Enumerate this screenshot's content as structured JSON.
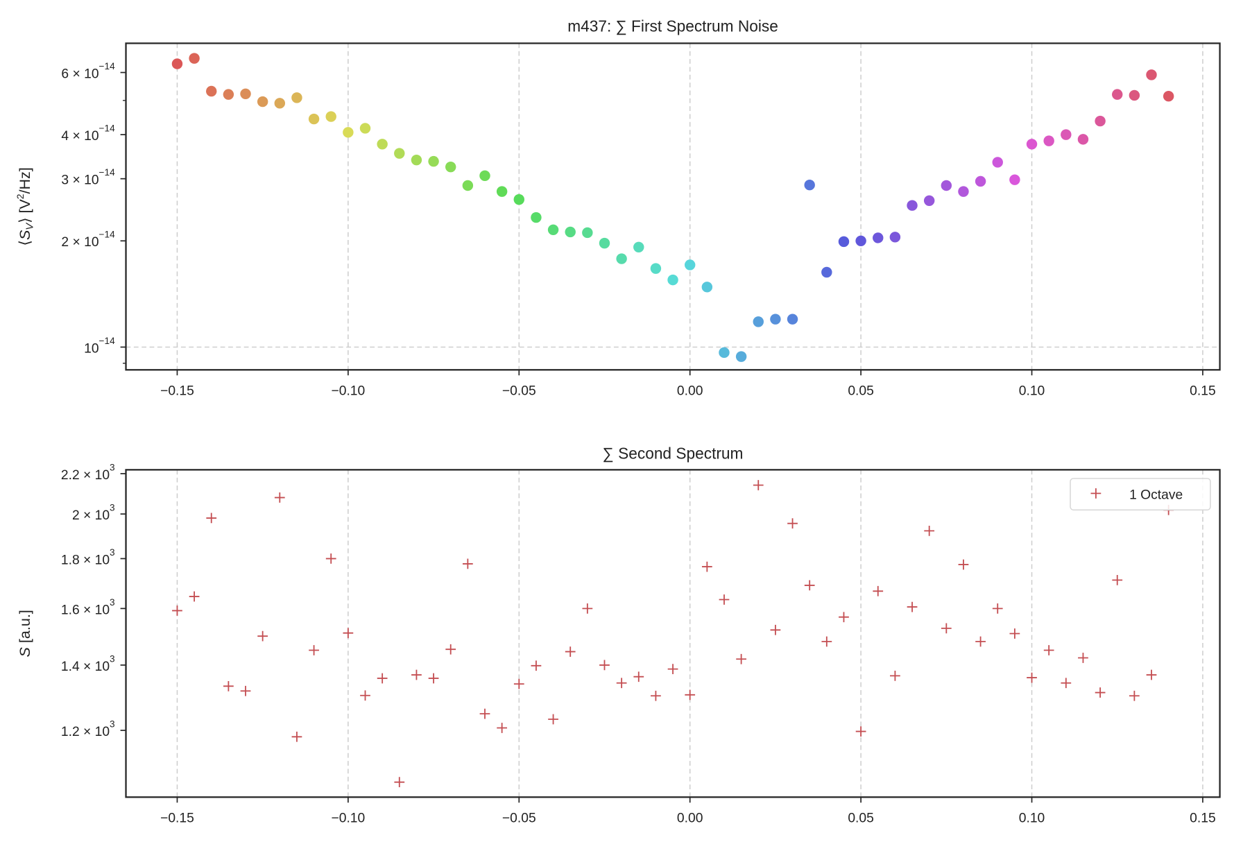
{
  "chart_data": [
    {
      "type": "scatter",
      "title": "m437: ∑ First Spectrum Noise",
      "xlabel": "",
      "ylabel": "⟨S_V⟩ [V²/Hz]",
      "yscale": "log",
      "xlim": [
        -0.165,
        0.155
      ],
      "ylim": [
        8.62e-15,
        7.26e-14
      ],
      "grid": "dashed, major x ticks and y=1e-14",
      "marker": "circle",
      "palette": "hls rainbow by point index (lightness 0.6, saturation 0.65)",
      "x_ticks": [
        {
          "value": -0.15,
          "label": "−0.15"
        },
        {
          "value": -0.1,
          "label": "−0.10"
        },
        {
          "value": -0.05,
          "label": "−0.05"
        },
        {
          "value": 0.0,
          "label": "0.00"
        },
        {
          "value": 0.05,
          "label": "0.05"
        },
        {
          "value": 0.1,
          "label": "0.10"
        },
        {
          "value": 0.15,
          "label": "0.15"
        }
      ],
      "y_ticks": [
        {
          "value": 6e-14,
          "mantissa": "6 × 10",
          "exponent": "−14"
        },
        {
          "value": 4e-14,
          "mantissa": "4 × 10",
          "exponent": "−14"
        },
        {
          "value": 3e-14,
          "mantissa": "3 × 10",
          "exponent": "−14"
        },
        {
          "value": 2e-14,
          "mantissa": "2 × 10",
          "exponent": "−14"
        },
        {
          "value": 1e-14,
          "mantissa": "10",
          "exponent": "−14"
        }
      ],
      "y_minor_ticks": [
        5e-14,
        9e-15
      ],
      "x": [
        -0.15,
        -0.145,
        -0.14,
        -0.135,
        -0.13,
        -0.125,
        -0.12,
        -0.115,
        -0.11,
        -0.105,
        -0.1,
        -0.095,
        -0.09,
        -0.085,
        -0.08,
        -0.075,
        -0.07,
        -0.065,
        -0.06,
        -0.055,
        -0.05,
        -0.045,
        -0.04,
        -0.035,
        -0.03,
        -0.025,
        -0.02,
        -0.015,
        -0.01,
        -0.005,
        0.0,
        0.005,
        0.01,
        0.015,
        0.02,
        0.025,
        0.03,
        0.035,
        0.04,
        0.045,
        0.05,
        0.055,
        0.06,
        0.065,
        0.07,
        0.075,
        0.08,
        0.085,
        0.09,
        0.095,
        0.1,
        0.105,
        0.11,
        0.115,
        0.12,
        0.125,
        0.13,
        0.135,
        0.14
      ],
      "y": [
        6.35e-14,
        6.58e-14,
        5.31e-14,
        5.2e-14,
        5.22e-14,
        4.96e-14,
        4.91e-14,
        5.09e-14,
        4.43e-14,
        4.5e-14,
        4.06e-14,
        4.17e-14,
        3.76e-14,
        3.54e-14,
        3.39e-14,
        3.36e-14,
        3.24e-14,
        2.87e-14,
        3.06e-14,
        2.76e-14,
        2.62e-14,
        2.33e-14,
        2.15e-14,
        2.12e-14,
        2.11e-14,
        1.97e-14,
        1.78e-14,
        1.92e-14,
        1.67e-14,
        1.55e-14,
        1.71e-14,
        1.48e-14,
        9.65e-15,
        9.4e-15,
        1.18e-14,
        1.2e-14,
        1.2e-14,
        2.88e-14,
        1.63e-14,
        1.99e-14,
        2e-14,
        2.04e-14,
        2.05e-14,
        2.52e-14,
        2.6e-14,
        2.87e-14,
        2.76e-14,
        2.95e-14,
        3.34e-14,
        2.98e-14,
        3.76e-14,
        3.84e-14,
        4e-14,
        3.88e-14,
        4.37e-14,
        5.2e-14,
        5.17e-14,
        5.91e-14,
        5.14e-14
      ]
    },
    {
      "type": "scatter",
      "title": "∑ Second Spectrum",
      "xlabel": "",
      "ylabel": "S [a.u.]",
      "yscale": "log",
      "xlim": [
        -0.165,
        0.155
      ],
      "ylim": [
        1025,
        2220
      ],
      "grid": "dashed, major x ticks",
      "marker": "plus",
      "color": "#c44e52",
      "legend": {
        "placement": "top-right",
        "entries": [
          "1 Octave"
        ]
      },
      "x_ticks": [
        {
          "value": -0.15,
          "label": "−0.15"
        },
        {
          "value": -0.1,
          "label": "−0.10"
        },
        {
          "value": -0.05,
          "label": "−0.05"
        },
        {
          "value": 0.0,
          "label": "0.00"
        },
        {
          "value": 0.05,
          "label": "0.05"
        },
        {
          "value": 0.1,
          "label": "0.10"
        },
        {
          "value": 0.15,
          "label": "0.15"
        }
      ],
      "y_ticks": [
        {
          "value": 2200,
          "mantissa": "2.2 × 10",
          "exponent": "3"
        },
        {
          "value": 2000,
          "mantissa": "2 × 10",
          "exponent": "3"
        },
        {
          "value": 1800,
          "mantissa": "1.8 × 10",
          "exponent": "3"
        },
        {
          "value": 1600,
          "mantissa": "1.6 × 10",
          "exponent": "3"
        },
        {
          "value": 1400,
          "mantissa": "1.4 × 10",
          "exponent": "3"
        },
        {
          "value": 1200,
          "mantissa": "1.2 × 10",
          "exponent": "3"
        }
      ],
      "x": [
        -0.15,
        -0.145,
        -0.14,
        -0.135,
        -0.13,
        -0.125,
        -0.12,
        -0.115,
        -0.11,
        -0.105,
        -0.1,
        -0.095,
        -0.09,
        -0.085,
        -0.08,
        -0.075,
        -0.07,
        -0.065,
        -0.06,
        -0.055,
        -0.05,
        -0.045,
        -0.04,
        -0.035,
        -0.03,
        -0.025,
        -0.02,
        -0.015,
        -0.01,
        -0.005,
        0.0,
        0.005,
        0.01,
        0.015,
        0.02,
        0.025,
        0.03,
        0.035,
        0.04,
        0.045,
        0.05,
        0.055,
        0.06,
        0.065,
        0.07,
        0.075,
        0.08,
        0.085,
        0.09,
        0.095,
        0.1,
        0.105,
        0.11,
        0.115,
        0.12,
        0.125,
        0.13,
        0.135,
        0.14
      ],
      "y": [
        1592,
        1646,
        1981,
        1332,
        1317,
        1499,
        2079,
        1182,
        1450,
        1800,
        1510,
        1303,
        1357,
        1062,
        1368,
        1357,
        1453,
        1778,
        1248,
        1207,
        1339,
        1398,
        1232,
        1445,
        1600,
        1400,
        1342,
        1362,
        1302,
        1387,
        1305,
        1766,
        1634,
        1420,
        2141,
        1521,
        1956,
        1690,
        1480,
        1568,
        1197,
        1667,
        1365,
        1606,
        1922,
        1527,
        1775,
        1480,
        1600,
        1508,
        1359,
        1450,
        1342,
        1424,
        1312,
        1711,
        1302,
        1368,
        2019
      ]
    }
  ]
}
